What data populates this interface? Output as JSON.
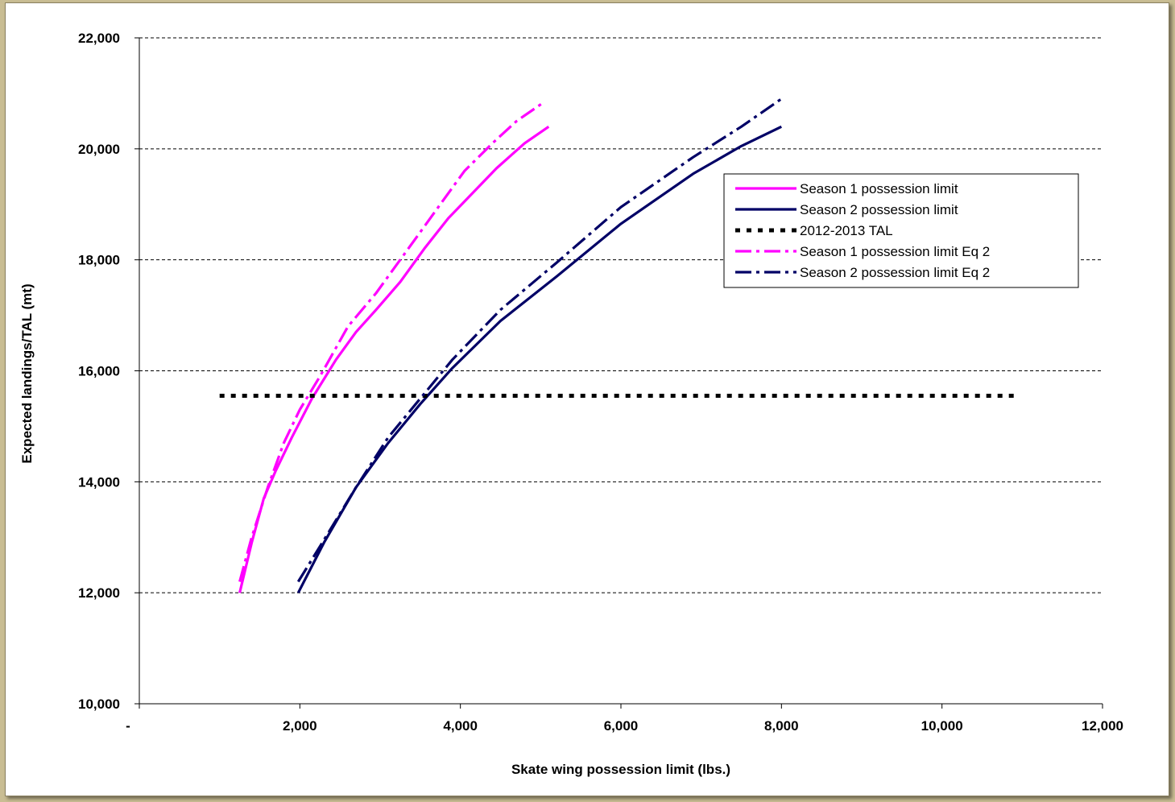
{
  "chart_data": {
    "type": "line",
    "xlabel": "Skate wing possession limit (lbs.)",
    "ylabel": "Expected landings/TAL (mt)",
    "xlim": [
      0,
      12000
    ],
    "ylim": [
      10000,
      22000
    ],
    "x_ticks": [
      0,
      2000,
      4000,
      6000,
      8000,
      10000,
      12000
    ],
    "x_tick_labels": [
      "-",
      "2,000",
      "4,000",
      "6,000",
      "8,000",
      "10,000",
      "12,000"
    ],
    "y_ticks": [
      10000,
      12000,
      14000,
      16000,
      18000,
      20000,
      22000
    ],
    "y_tick_labels": [
      "10,000",
      "12,000",
      "14,000",
      "16,000",
      "18,000",
      "20,000",
      "22,000"
    ],
    "grid": "horizontal dashed",
    "legend_position": "right",
    "series": [
      {
        "name": "Season 1 possession limit",
        "color": "#ff00ff",
        "dash": "solid",
        "x": [
          1250,
          1400,
          1550,
          1700,
          1900,
          2150,
          2450,
          2700,
          2950,
          3250,
          3550,
          3850,
          4150,
          4450,
          4800,
          5100
        ],
        "y": [
          12000,
          12900,
          13700,
          14200,
          14800,
          15500,
          16200,
          16700,
          17100,
          17600,
          18200,
          18750,
          19200,
          19650,
          20100,
          20400
        ]
      },
      {
        "name": "Season 2 possession limit",
        "color": "#000066",
        "dash": "solid",
        "x": [
          1980,
          2300,
          2700,
          3100,
          3500,
          3900,
          4500,
          5200,
          6000,
          6900,
          7500,
          8000
        ],
        "y": [
          12000,
          12900,
          13900,
          14700,
          15400,
          16050,
          16900,
          17700,
          18650,
          19550,
          20050,
          20400
        ]
      },
      {
        "name": "2012-2013 TAL",
        "color": "#000000",
        "dash": "dotted",
        "x": [
          1000,
          10900
        ],
        "y": [
          15550,
          15550
        ]
      },
      {
        "name": "Season 1 possession limit Eq 2",
        "color": "#ff00ff",
        "dash": "dashdot",
        "x": [
          1250,
          1400,
          1600,
          1800,
          2000,
          2250,
          2600,
          2950,
          3300,
          3700,
          4050,
          4400,
          4700,
          5050
        ],
        "y": [
          12200,
          13000,
          13900,
          14700,
          15300,
          15900,
          16800,
          17400,
          18100,
          18900,
          19600,
          20100,
          20500,
          20850
        ]
      },
      {
        "name": "Season 2 possession limit Eq 2",
        "color": "#000066",
        "dash": "dashdot",
        "x": [
          1980,
          2300,
          2700,
          3100,
          3500,
          3900,
          4500,
          5200,
          6000,
          6900,
          7500,
          8000
        ],
        "y": [
          12200,
          12950,
          13900,
          14800,
          15500,
          16200,
          17100,
          17950,
          18950,
          19850,
          20400,
          20900
        ]
      }
    ]
  }
}
